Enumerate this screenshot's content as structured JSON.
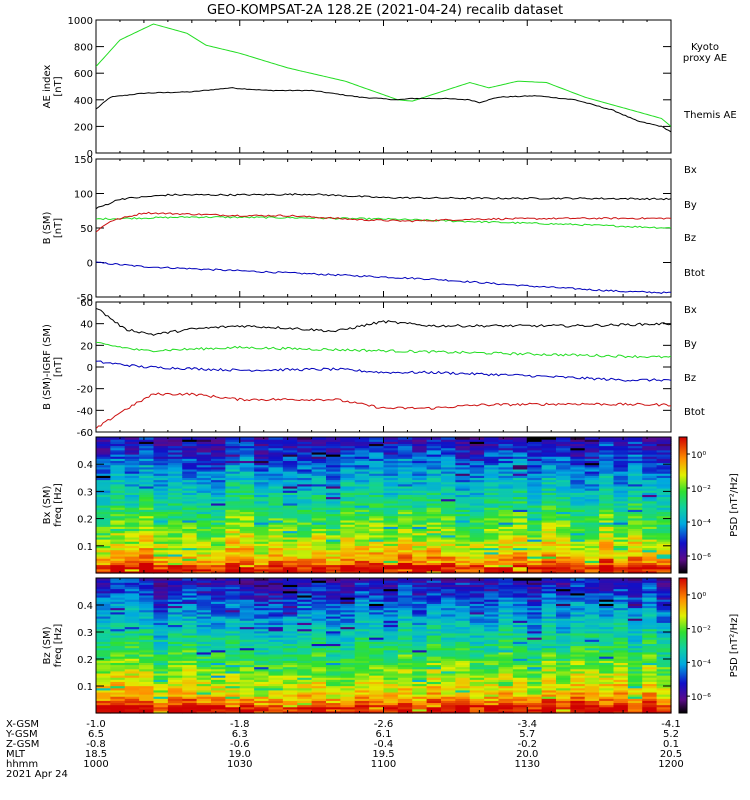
{
  "title": "GEO-KOMPSAT-2A 128.2E (2021-04-24) recalib dataset",
  "colors": {
    "black": "#000000",
    "green": "#22dd22",
    "red": "#cc1111",
    "blue": "#0000bb"
  },
  "chart_data": [
    {
      "type": "line",
      "id": "ae",
      "ylabel": [
        "AE index",
        "[nT]"
      ],
      "ylim": [
        0,
        1000
      ],
      "yticks": [
        0,
        200,
        400,
        600,
        800,
        1000
      ],
      "x_range": [
        "10:00",
        "12:00"
      ],
      "series": [
        {
          "name": "Kyoto proxy AE",
          "legend": [
            "Kyoto",
            "proxy AE"
          ],
          "color": "#22dd22",
          "x": [
            "10:00",
            "10:05",
            "10:12",
            "10:19",
            "10:23",
            "10:30",
            "10:40",
            "10:52",
            "11:03",
            "11:06",
            "11:12",
            "11:18",
            "11:22",
            "11:28",
            "11:34",
            "11:42",
            "11:50",
            "11:58",
            "12:00"
          ],
          "values": [
            650,
            850,
            970,
            900,
            810,
            750,
            640,
            540,
            400,
            390,
            460,
            530,
            490,
            540,
            530,
            420,
            340,
            260,
            200
          ]
        },
        {
          "name": "Themis AE",
          "legend": [
            "Themis AE"
          ],
          "color": "#000000",
          "x": [
            "10:00",
            "10:03",
            "10:10",
            "10:20",
            "10:28",
            "10:36",
            "10:45",
            "10:55",
            "11:03",
            "11:06",
            "11:12",
            "11:18",
            "11:20",
            "11:24",
            "11:32",
            "11:40",
            "11:48",
            "11:53",
            "11:58",
            "12:00"
          ],
          "values": [
            330,
            420,
            450,
            460,
            490,
            470,
            470,
            420,
            400,
            410,
            410,
            400,
            380,
            420,
            430,
            400,
            320,
            240,
            200,
            160
          ]
        }
      ]
    },
    {
      "type": "line",
      "id": "bsm",
      "ylabel": [
        "B (SM)",
        "[nT]"
      ],
      "ylim": [
        -50,
        150
      ],
      "yticks": [
        -50,
        0,
        50,
        100,
        150
      ],
      "series": [
        {
          "name": "Bx",
          "color": "#0000bb",
          "x": [
            "10:00",
            "10:10",
            "10:30",
            "10:50",
            "11:10",
            "11:30",
            "11:50",
            "12:00"
          ],
          "values": [
            0,
            -6,
            -12,
            -18,
            -24,
            -34,
            -42,
            -44
          ]
        },
        {
          "name": "By",
          "color": "#22dd22",
          "x": [
            "10:00",
            "10:20",
            "10:40",
            "11:00",
            "11:20",
            "11:40",
            "12:00"
          ],
          "values": [
            63,
            66,
            65,
            63,
            59,
            55,
            50
          ]
        },
        {
          "name": "Bz",
          "color": "#cc1111",
          "x": [
            "10:00",
            "10:03",
            "10:10",
            "10:20",
            "10:30",
            "10:40",
            "10:55",
            "11:05",
            "11:20",
            "11:40",
            "12:00"
          ],
          "values": [
            45,
            60,
            72,
            70,
            68,
            68,
            62,
            60,
            63,
            64,
            64
          ]
        },
        {
          "name": "Btot",
          "color": "#000000",
          "x": [
            "10:00",
            "10:05",
            "10:15",
            "10:30",
            "10:45",
            "11:00",
            "11:20",
            "11:40",
            "12:00"
          ],
          "values": [
            78,
            92,
            98,
            98,
            99,
            94,
            93,
            93,
            92
          ]
        }
      ]
    },
    {
      "type": "line",
      "id": "bdiff",
      "ylabel": [
        "B (SM)-IGRF (SM)",
        "[nT]"
      ],
      "ylim": [
        -60,
        60
      ],
      "yticks": [
        -60,
        -40,
        -20,
        0,
        20,
        40,
        60
      ],
      "series": [
        {
          "name": "Bx",
          "color": "#0000bb",
          "x": [
            "10:00",
            "10:10",
            "10:30",
            "10:50",
            "11:00",
            "11:10",
            "11:30",
            "11:50",
            "12:00"
          ],
          "values": [
            5,
            0,
            -3,
            -2,
            -5,
            -5,
            -8,
            -12,
            -12
          ]
        },
        {
          "name": "By",
          "color": "#22dd22",
          "x": [
            "10:00",
            "10:10",
            "10:30",
            "10:50",
            "11:10",
            "11:30",
            "11:50",
            "12:00"
          ],
          "values": [
            22,
            15,
            18,
            16,
            14,
            12,
            10,
            9
          ]
        },
        {
          "name": "Bz",
          "color": "#cc1111",
          "x": [
            "10:00",
            "10:05",
            "10:12",
            "10:20",
            "10:30",
            "10:40",
            "10:50",
            "11:00",
            "11:10",
            "11:20",
            "11:40",
            "12:00"
          ],
          "values": [
            -57,
            -42,
            -25,
            -25,
            -30,
            -30,
            -30,
            -38,
            -38,
            -35,
            -34,
            -35
          ]
        },
        {
          "name": "Btot",
          "color": "#000000",
          "x": [
            "10:00",
            "10:06",
            "10:12",
            "10:20",
            "10:30",
            "10:40",
            "10:50",
            "11:00",
            "11:10",
            "11:20",
            "11:40",
            "12:00"
          ],
          "values": [
            55,
            35,
            30,
            35,
            38,
            36,
            33,
            42,
            38,
            38,
            38,
            40
          ]
        }
      ]
    },
    {
      "type": "heatmap",
      "id": "bx_spec",
      "ylabel": [
        "Bx (SM)",
        "freq [Hz]"
      ],
      "ylim": [
        0,
        0.5
      ],
      "yticks": [
        0.1,
        0.2,
        0.3,
        0.4
      ],
      "colorbar_label": "PSD [nT²/Hz]",
      "colorbar_ticks": [
        "10⁰",
        "10⁻²",
        "10⁻⁴",
        "10⁻⁶"
      ],
      "colorbar_log10_range": [
        -7,
        1
      ]
    },
    {
      "type": "heatmap",
      "id": "bz_spec",
      "ylabel": [
        "Bz (SM)",
        "freq [Hz]"
      ],
      "ylim": [
        0,
        0.5
      ],
      "yticks": [
        0.1,
        0.2,
        0.3,
        0.4
      ],
      "colorbar_label": "PSD [nT²/Hz]",
      "colorbar_ticks": [
        "10⁰",
        "10⁻²",
        "10⁻⁴",
        "10⁻⁶"
      ],
      "colorbar_log10_range": [
        -7,
        1
      ]
    }
  ],
  "ephemeris": {
    "labels": [
      "X-GSM",
      "Y-GSM",
      "Z-GSM",
      "MLT",
      "hhmm",
      "2021 Apr 24"
    ],
    "columns": [
      {
        "x": "10:00",
        "values": [
          "-1.0",
          "6.5",
          "-0.8",
          "18.5",
          "1000"
        ]
      },
      {
        "x": "10:30",
        "values": [
          "-1.8",
          "6.3",
          "-0.6",
          "19.0",
          "1030"
        ]
      },
      {
        "x": "11:00",
        "values": [
          "-2.6",
          "6.1",
          "-0.4",
          "19.5",
          "1100"
        ]
      },
      {
        "x": "11:30",
        "values": [
          "-3.4",
          "5.7",
          "-0.2",
          "20.0",
          "1130"
        ]
      },
      {
        "x": "12:00",
        "values": [
          "-4.1",
          "5.2",
          "0.1",
          "20.5",
          "1200"
        ]
      }
    ]
  }
}
